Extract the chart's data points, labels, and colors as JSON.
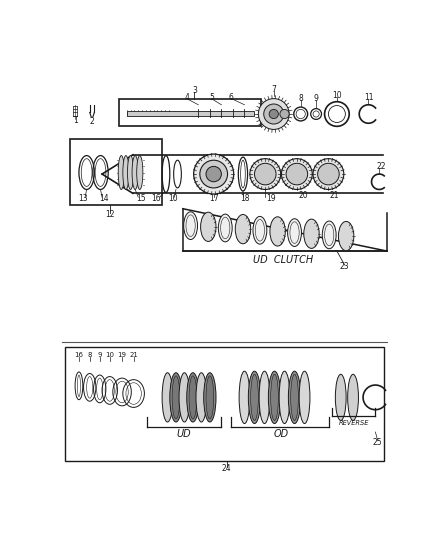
{
  "background_color": "#ffffff",
  "line_color": "#1a1a1a",
  "fig_width": 4.38,
  "fig_height": 5.33,
  "dpi": 100,
  "ud_clutch_label": "UD  CLUTCH",
  "ud_label": "UD",
  "od_label": "OD",
  "reverse_label": "REVERSE"
}
